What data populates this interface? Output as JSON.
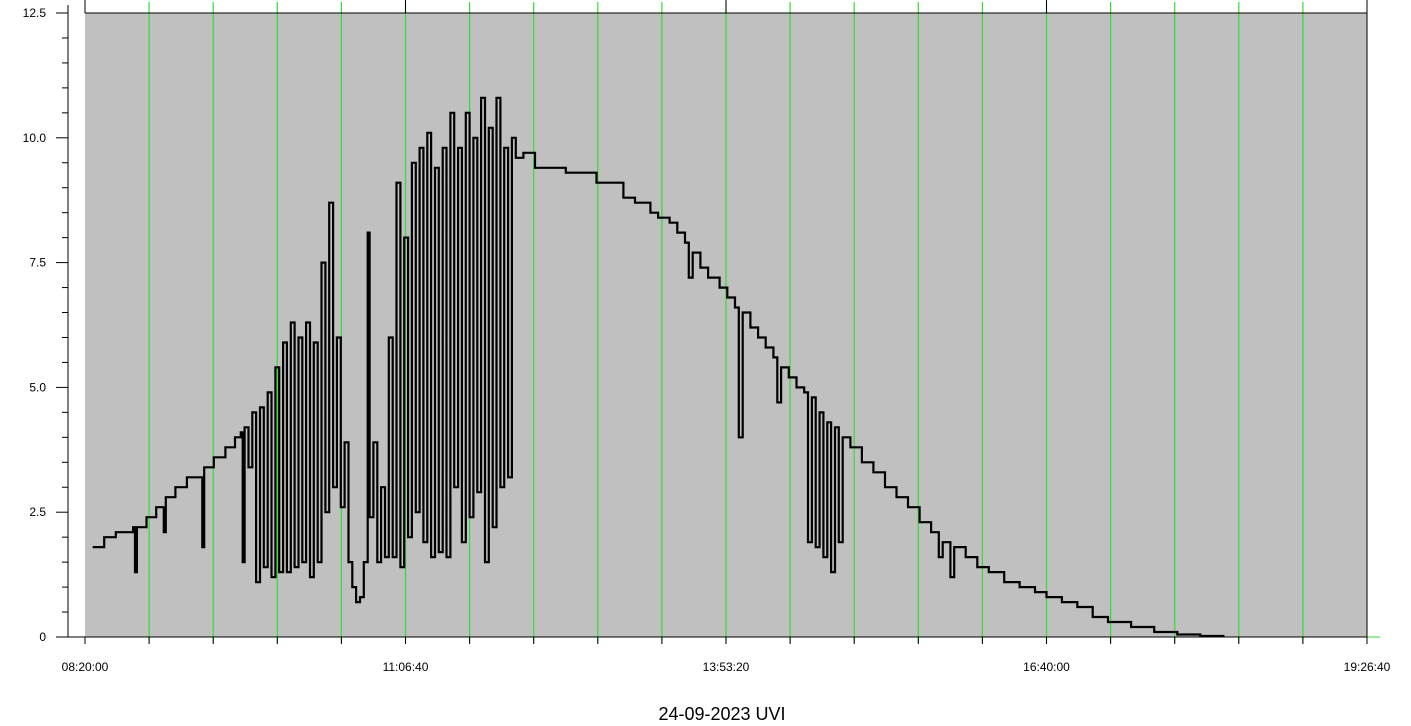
{
  "chart_data": {
    "type": "line",
    "title": "24-09-2023 UVI",
    "x_tick_labels": [
      "08:20:00",
      "11:06:40",
      "13:53:20",
      "16:40:00",
      "19:26:40"
    ],
    "x_range_seconds_of_day": [
      30000,
      70000
    ],
    "y_tick_labels": [
      "0",
      "2.5",
      "5.0",
      "7.5",
      "10.0",
      "12.5"
    ],
    "ylim": [
      0,
      12.5
    ],
    "grid": "vertical",
    "colors": {
      "background": "#c0c0c0",
      "grid": "#33dd33",
      "line": "#000000",
      "axis": "#000000"
    },
    "series": [
      {
        "values_note": "UVI readings (time of day, value)",
        "points": [
          [
            "08:24:00",
            1.8
          ],
          [
            "08:30:00",
            2.0
          ],
          [
            "08:36:00",
            2.1
          ],
          [
            "08:45:00",
            2.2
          ],
          [
            "08:46:00",
            1.3
          ],
          [
            "08:47:00",
            2.2
          ],
          [
            "08:52:00",
            2.4
          ],
          [
            "08:57:00",
            2.6
          ],
          [
            "09:00:00",
            2.6
          ],
          [
            "09:01:00",
            2.1
          ],
          [
            "09:02:00",
            2.8
          ],
          [
            "09:07:00",
            3.0
          ],
          [
            "09:13:00",
            3.2
          ],
          [
            "09:20:00",
            3.2
          ],
          [
            "09:21:00",
            1.8
          ],
          [
            "09:22:00",
            3.4
          ],
          [
            "09:27:00",
            3.6
          ],
          [
            "09:33:00",
            3.8
          ],
          [
            "09:38:00",
            4.0
          ],
          [
            "09:41:00",
            4.1
          ],
          [
            "09:42:00",
            1.5
          ],
          [
            "09:43:00",
            4.2
          ],
          [
            "09:45:00",
            3.4
          ],
          [
            "09:47:00",
            4.5
          ],
          [
            "09:49:00",
            1.1
          ],
          [
            "09:51:00",
            4.6
          ],
          [
            "09:53:00",
            1.4
          ],
          [
            "09:55:00",
            4.9
          ],
          [
            "09:57:00",
            1.2
          ],
          [
            "09:59:00",
            5.4
          ],
          [
            "10:01:00",
            1.3
          ],
          [
            "10:03:00",
            5.9
          ],
          [
            "10:05:00",
            1.3
          ],
          [
            "10:07:00",
            6.3
          ],
          [
            "10:09:00",
            1.4
          ],
          [
            "10:11:00",
            6.0
          ],
          [
            "10:13:00",
            1.5
          ],
          [
            "10:15:00",
            6.3
          ],
          [
            "10:17:00",
            1.2
          ],
          [
            "10:19:00",
            5.9
          ],
          [
            "10:21:00",
            1.5
          ],
          [
            "10:23:00",
            7.5
          ],
          [
            "10:25:00",
            2.5
          ],
          [
            "10:27:00",
            8.7
          ],
          [
            "10:29:00",
            3.0
          ],
          [
            "10:31:00",
            6.0
          ],
          [
            "10:33:00",
            2.6
          ],
          [
            "10:35:00",
            3.9
          ],
          [
            "10:37:00",
            1.5
          ],
          [
            "10:39:00",
            1.0
          ],
          [
            "10:41:00",
            0.7
          ],
          [
            "10:43:00",
            0.8
          ],
          [
            "10:45:00",
            1.5
          ],
          [
            "10:47:00",
            8.1
          ],
          [
            "10:48:00",
            2.4
          ],
          [
            "10:50:00",
            3.9
          ],
          [
            "10:52:00",
            1.5
          ],
          [
            "10:54:00",
            3.0
          ],
          [
            "10:56:00",
            1.6
          ],
          [
            "10:58:00",
            6.0
          ],
          [
            "11:00:00",
            1.6
          ],
          [
            "11:02:00",
            9.1
          ],
          [
            "11:04:00",
            1.4
          ],
          [
            "11:06:00",
            8.0
          ],
          [
            "11:08:00",
            2.0
          ],
          [
            "11:10:00",
            9.5
          ],
          [
            "11:12:00",
            2.5
          ],
          [
            "11:14:00",
            9.8
          ],
          [
            "11:16:00",
            1.9
          ],
          [
            "11:18:00",
            10.1
          ],
          [
            "11:20:00",
            1.6
          ],
          [
            "11:22:00",
            9.4
          ],
          [
            "11:24:00",
            1.7
          ],
          [
            "11:26:00",
            9.8
          ],
          [
            "11:28:00",
            1.6
          ],
          [
            "11:30:00",
            10.5
          ],
          [
            "11:32:00",
            3.0
          ],
          [
            "11:34:00",
            9.8
          ],
          [
            "11:36:00",
            1.9
          ],
          [
            "11:38:00",
            10.5
          ],
          [
            "11:40:00",
            2.4
          ],
          [
            "11:42:00",
            10.0
          ],
          [
            "11:44:00",
            2.9
          ],
          [
            "11:46:00",
            10.8
          ],
          [
            "11:48:00",
            1.5
          ],
          [
            "11:50:00",
            10.2
          ],
          [
            "11:52:00",
            2.2
          ],
          [
            "11:54:00",
            10.8
          ],
          [
            "11:56:00",
            3.0
          ],
          [
            "11:58:00",
            9.8
          ],
          [
            "12:00:00",
            3.2
          ],
          [
            "12:02:00",
            10.0
          ],
          [
            "12:04:00",
            9.6
          ],
          [
            "12:08:00",
            9.7
          ],
          [
            "12:14:00",
            9.4
          ],
          [
            "12:22:00",
            9.4
          ],
          [
            "12:30:00",
            9.3
          ],
          [
            "12:38:00",
            9.3
          ],
          [
            "12:46:00",
            9.1
          ],
          [
            "12:54:00",
            9.1
          ],
          [
            "13:00:00",
            8.8
          ],
          [
            "13:06:00",
            8.7
          ],
          [
            "13:14:00",
            8.5
          ],
          [
            "13:18:00",
            8.4
          ],
          [
            "13:24:00",
            8.3
          ],
          [
            "13:28:00",
            8.1
          ],
          [
            "13:32:00",
            7.9
          ],
          [
            "13:34:00",
            7.2
          ],
          [
            "13:36:00",
            7.7
          ],
          [
            "13:40:00",
            7.4
          ],
          [
            "13:44:00",
            7.2
          ],
          [
            "13:50:00",
            7.0
          ],
          [
            "13:54:00",
            6.8
          ],
          [
            "13:58:00",
            6.6
          ],
          [
            "14:00:00",
            4.0
          ],
          [
            "14:02:00",
            6.5
          ],
          [
            "14:06:00",
            6.2
          ],
          [
            "14:10:00",
            6.0
          ],
          [
            "14:14:00",
            5.8
          ],
          [
            "14:18:00",
            5.6
          ],
          [
            "14:20:00",
            4.7
          ],
          [
            "14:22:00",
            5.4
          ],
          [
            "14:26:00",
            5.2
          ],
          [
            "14:30:00",
            5.0
          ],
          [
            "14:34:00",
            4.9
          ],
          [
            "14:36:00",
            1.9
          ],
          [
            "14:38:00",
            4.8
          ],
          [
            "14:40:00",
            1.8
          ],
          [
            "14:42:00",
            4.5
          ],
          [
            "14:44:00",
            1.6
          ],
          [
            "14:46:00",
            4.3
          ],
          [
            "14:48:00",
            1.3
          ],
          [
            "14:50:00",
            4.2
          ],
          [
            "14:52:00",
            1.9
          ],
          [
            "14:54:00",
            4.0
          ],
          [
            "14:58:00",
            3.8
          ],
          [
            "15:04:00",
            3.5
          ],
          [
            "15:10:00",
            3.3
          ],
          [
            "15:16:00",
            3.0
          ],
          [
            "15:22:00",
            2.8
          ],
          [
            "15:28:00",
            2.6
          ],
          [
            "15:34:00",
            2.3
          ],
          [
            "15:40:00",
            2.1
          ],
          [
            "15:44:00",
            1.6
          ],
          [
            "15:46:00",
            1.9
          ],
          [
            "15:50:00",
            1.2
          ],
          [
            "15:52:00",
            1.8
          ],
          [
            "15:58:00",
            1.6
          ],
          [
            "16:04:00",
            1.4
          ],
          [
            "16:10:00",
            1.3
          ],
          [
            "16:18:00",
            1.1
          ],
          [
            "16:26:00",
            1.0
          ],
          [
            "16:34:00",
            0.9
          ],
          [
            "16:40:00",
            0.8
          ],
          [
            "16:48:00",
            0.7
          ],
          [
            "16:56:00",
            0.6
          ],
          [
            "17:04:00",
            0.4
          ],
          [
            "17:12:00",
            0.3
          ],
          [
            "17:24:00",
            0.2
          ],
          [
            "17:36:00",
            0.1
          ],
          [
            "17:48:00",
            0.05
          ],
          [
            "18:00:00",
            0.02
          ],
          [
            "18:12:00",
            0.0
          ]
        ]
      }
    ]
  }
}
